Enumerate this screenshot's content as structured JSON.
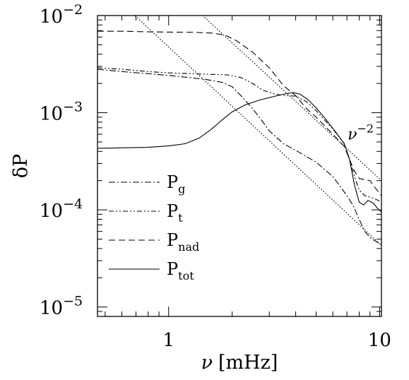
{
  "chart_data": {
    "type": "line",
    "xscale": "log",
    "yscale": "log",
    "xlim": [
      0.46,
      10.2
    ],
    "ylim": [
      8e-06,
      0.01
    ],
    "xlabel": {
      "symbol": "ν",
      "unit": "[mHz]"
    },
    "ylabel": {
      "symbol": "δP"
    },
    "x_ticks": [
      {
        "value": 1,
        "label": "1"
      },
      {
        "value": 10,
        "label": "10"
      }
    ],
    "y_ticks": [
      {
        "value": 0.01,
        "base": "10",
        "exponent": "−2"
      },
      {
        "value": 0.001,
        "base": "10",
        "exponent": "−3"
      },
      {
        "value": 0.0001,
        "base": "10",
        "exponent": "−4"
      },
      {
        "value": 1e-05,
        "base": "10",
        "exponent": "−5"
      }
    ],
    "annotations": [
      {
        "text": "ν",
        "sup": "−2",
        "x": 7.05,
        "y": 0.00053
      }
    ],
    "legend": {
      "placement": "lower-left"
    },
    "series": [
      {
        "name": "P",
        "sub": "g",
        "style": "dashdot",
        "points": [
          [
            0.46,
            0.0028
          ],
          [
            0.6,
            0.00265
          ],
          [
            0.8,
            0.00252
          ],
          [
            1.0,
            0.00242
          ],
          [
            1.2,
            0.00232
          ],
          [
            1.5,
            0.0022
          ],
          [
            1.8,
            0.00205
          ],
          [
            2.0,
            0.00185
          ],
          [
            2.2,
            0.0015
          ],
          [
            2.5,
            0.0011
          ],
          [
            2.8,
            0.0008
          ],
          [
            3.0,
            0.00065
          ],
          [
            3.5,
            0.00048
          ],
          [
            4.0,
            0.00041
          ],
          [
            5.0,
            0.00031
          ],
          [
            6.0,
            0.00022
          ],
          [
            7.0,
            0.00014
          ],
          [
            7.5,
            0.00011
          ],
          [
            8.0,
            8e-05
          ],
          [
            8.5,
            6e-05
          ],
          [
            9.0,
            5.2e-05
          ],
          [
            9.5,
            4.8e-05
          ],
          [
            10.2,
            4.4e-05
          ]
        ]
      },
      {
        "name": "P",
        "sub": "t",
        "style": "dashdotdot",
        "points": [
          [
            0.46,
            0.0029
          ],
          [
            0.6,
            0.0028
          ],
          [
            0.8,
            0.00265
          ],
          [
            1.0,
            0.00257
          ],
          [
            1.3,
            0.00252
          ],
          [
            1.6,
            0.00248
          ],
          [
            1.9,
            0.00245
          ],
          [
            2.2,
            0.0023
          ],
          [
            2.5,
            0.002
          ],
          [
            2.8,
            0.0017
          ],
          [
            3.2,
            0.00155
          ],
          [
            3.6,
            0.0015
          ],
          [
            4.0,
            0.00148
          ],
          [
            4.5,
            0.0013
          ],
          [
            5.0,
            0.00105
          ],
          [
            6.0,
            0.00068
          ],
          [
            6.8,
            0.00048
          ],
          [
            7.2,
            0.00033
          ],
          [
            7.6,
            0.00022
          ],
          [
            8.0,
            0.00016
          ],
          [
            8.5,
            0.00014
          ],
          [
            9.0,
            0.000135
          ],
          [
            9.5,
            0.00013
          ],
          [
            10.2,
            0.00012
          ]
        ]
      },
      {
        "name": "P",
        "sub": "nad",
        "style": "dashed",
        "points": [
          [
            0.46,
            0.0069
          ],
          [
            0.6,
            0.0069
          ],
          [
            0.8,
            0.0068
          ],
          [
            1.0,
            0.00675
          ],
          [
            1.3,
            0.00673
          ],
          [
            1.6,
            0.0066
          ],
          [
            1.85,
            0.0063
          ],
          [
            2.1,
            0.0055
          ],
          [
            2.5,
            0.0042
          ],
          [
            3.0,
            0.0029
          ],
          [
            3.5,
            0.0019
          ],
          [
            4.0,
            0.0015
          ],
          [
            4.5,
            0.0011
          ],
          [
            5.0,
            0.0009
          ],
          [
            6.0,
            0.0006
          ],
          [
            6.8,
            0.00045
          ],
          [
            7.2,
            0.00033
          ],
          [
            7.6,
            0.00025
          ],
          [
            8.0,
            0.00021
          ],
          [
            8.5,
            0.000205
          ],
          [
            9.0,
            0.0002
          ],
          [
            9.5,
            0.00017
          ],
          [
            10.2,
            0.00014
          ]
        ]
      },
      {
        "name": "P",
        "sub": "tot",
        "style": "solid",
        "points": [
          [
            0.46,
            0.00043
          ],
          [
            0.6,
            0.000435
          ],
          [
            0.8,
            0.00044
          ],
          [
            1.0,
            0.000455
          ],
          [
            1.2,
            0.00048
          ],
          [
            1.4,
            0.00055
          ],
          [
            1.6,
            0.00068
          ],
          [
            1.8,
            0.00085
          ],
          [
            2.0,
            0.00102
          ],
          [
            2.3,
            0.0012
          ],
          [
            2.7,
            0.00135
          ],
          [
            3.2,
            0.00148
          ],
          [
            3.6,
            0.00157
          ],
          [
            3.9,
            0.00161
          ],
          [
            4.2,
            0.00155
          ],
          [
            4.6,
            0.00135
          ],
          [
            5.0,
            0.00112
          ],
          [
            5.5,
            0.00088
          ],
          [
            6.2,
            0.00063
          ],
          [
            6.8,
            0.00048
          ],
          [
            7.2,
            0.00033
          ],
          [
            7.6,
            0.00018
          ],
          [
            8.0,
            0.00012
          ],
          [
            8.4,
            0.000112
          ],
          [
            8.8,
            0.000125
          ],
          [
            9.3,
            0.000118
          ],
          [
            9.8,
            0.000103
          ],
          [
            10.2,
            9.5e-05
          ]
        ]
      },
      {
        "name": "",
        "sub": "",
        "style": "dotted",
        "role": "nu^-2 reference",
        "points": [
          [
            0.62,
            0.0125
          ],
          [
            10.2,
            4.3e-05
          ]
        ]
      },
      {
        "name": "",
        "sub": "",
        "style": "dotted",
        "role": "nu^-2 reference",
        "points": [
          [
            1.35,
            0.0115
          ],
          [
            10.2,
            0.0002
          ]
        ]
      }
    ]
  }
}
